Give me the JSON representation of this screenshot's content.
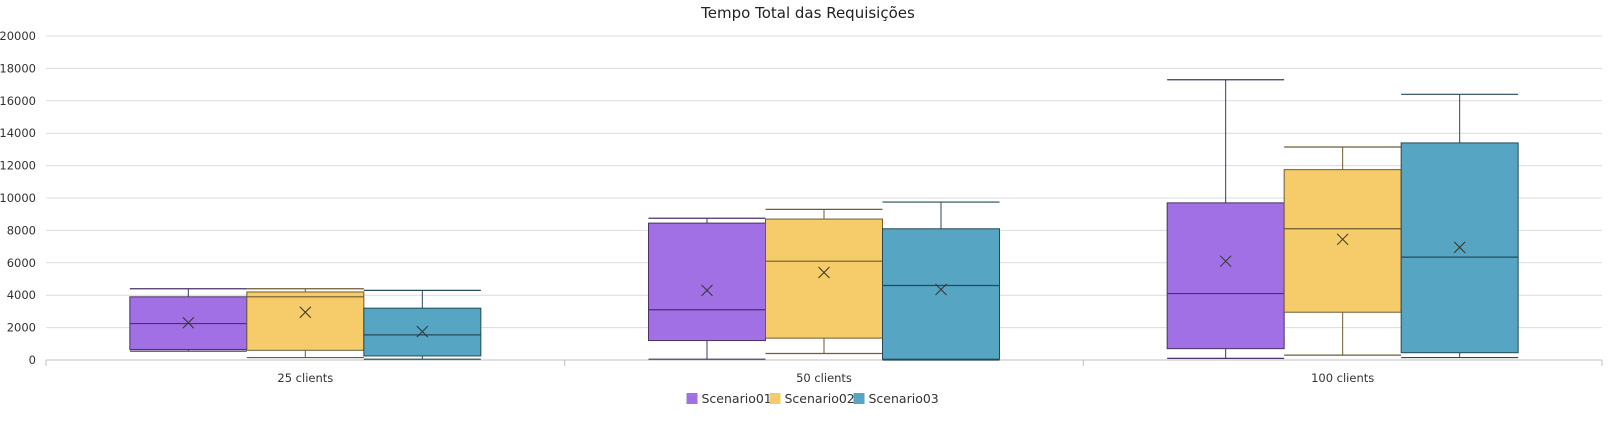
{
  "chart_data": {
    "type": "box",
    "title": "Tempo Total das Requisições",
    "xlabel": "",
    "ylabel": "",
    "ylim": [
      0,
      20000
    ],
    "yticks": [
      0,
      2000,
      4000,
      6000,
      8000,
      10000,
      12000,
      14000,
      16000,
      18000,
      20000
    ],
    "categories": [
      "25 clients",
      "50 clients",
      "100 clients"
    ],
    "grid": true,
    "legend_position": "bottom-center",
    "series": [
      {
        "name": "Scenario01",
        "color": "#a070e4",
        "boxes": [
          {
            "min": 550,
            "q1": 650,
            "median": 2250,
            "q3": 3900,
            "max": 4400,
            "mean": 2300
          },
          {
            "min": 50,
            "q1": 1200,
            "median": 3100,
            "q3": 8450,
            "max": 8750,
            "mean": 4300
          },
          {
            "min": 100,
            "q1": 700,
            "median": 4100,
            "q3": 9700,
            "max": 17300,
            "mean": 6100
          }
        ]
      },
      {
        "name": "Scenario02",
        "color": "#f6cc6a",
        "boxes": [
          {
            "min": 150,
            "q1": 600,
            "median": 3900,
            "q3": 4200,
            "max": 4400,
            "mean": 2950
          },
          {
            "min": 400,
            "q1": 1350,
            "median": 6100,
            "q3": 8700,
            "max": 9300,
            "mean": 5400
          },
          {
            "min": 300,
            "q1": 2950,
            "median": 8100,
            "q3": 11750,
            "max": 13150,
            "mean": 7450
          }
        ]
      },
      {
        "name": "Scenario03",
        "color": "#56a5c3",
        "boxes": [
          {
            "min": 50,
            "q1": 250,
            "median": 1550,
            "q3": 3200,
            "max": 4300,
            "mean": 1750
          },
          {
            "min": 0,
            "q1": 50,
            "median": 4600,
            "q3": 8100,
            "max": 9750,
            "mean": 4350
          },
          {
            "min": 150,
            "q1": 450,
            "median": 6350,
            "q3": 13400,
            "max": 16400,
            "mean": 6950
          }
        ]
      }
    ]
  }
}
